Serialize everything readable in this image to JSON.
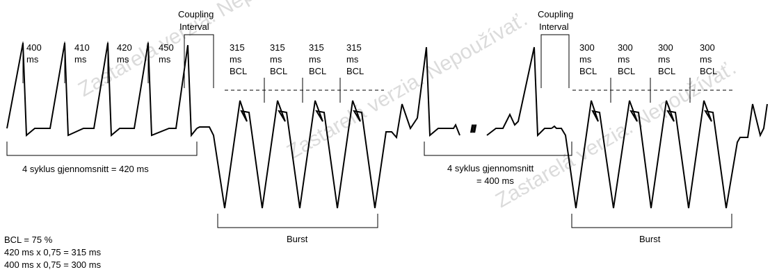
{
  "watermark_text": "Zastarelá verzia. Nepoužívať.",
  "left_segment": {
    "interval_labels": [
      {
        "value": "400",
        "unit": "ms"
      },
      {
        "value": "410",
        "unit": "ms"
      },
      {
        "value": "420",
        "unit": "ms"
      },
      {
        "value": "450",
        "unit": "ms"
      }
    ],
    "coupling_line1": "Coupling",
    "coupling_line2": "Interval",
    "burst_labels": [
      {
        "value": "315",
        "unit": "ms",
        "tag": "BCL"
      },
      {
        "value": "315",
        "unit": "ms",
        "tag": "BCL"
      },
      {
        "value": "315",
        "unit": "ms",
        "tag": "BCL"
      },
      {
        "value": "315",
        "unit": "ms",
        "tag": "BCL"
      }
    ],
    "average_text": "4 syklus gjennomsnitt = 420 ms",
    "burst_text": "Burst"
  },
  "right_segment": {
    "coupling_line1": "Coupling",
    "coupling_line2": "Interval",
    "burst_labels": [
      {
        "value": "300",
        "unit": "ms",
        "tag": "BCL"
      },
      {
        "value": "300",
        "unit": "ms",
        "tag": "BCL"
      },
      {
        "value": "300",
        "unit": "ms",
        "tag": "BCL"
      },
      {
        "value": "300",
        "unit": "ms",
        "tag": "BCL"
      }
    ],
    "average_line1": "4 syklus gjennomsnitt",
    "average_line2": "= 400 ms",
    "burst_text": "Burst",
    "break_mark": "//"
  },
  "formula": {
    "line1": "BCL = 75 %",
    "line2": "420 ms x 0,75 = 315 ms",
    "line3": "400 ms x 0,75 = 300 ms"
  }
}
